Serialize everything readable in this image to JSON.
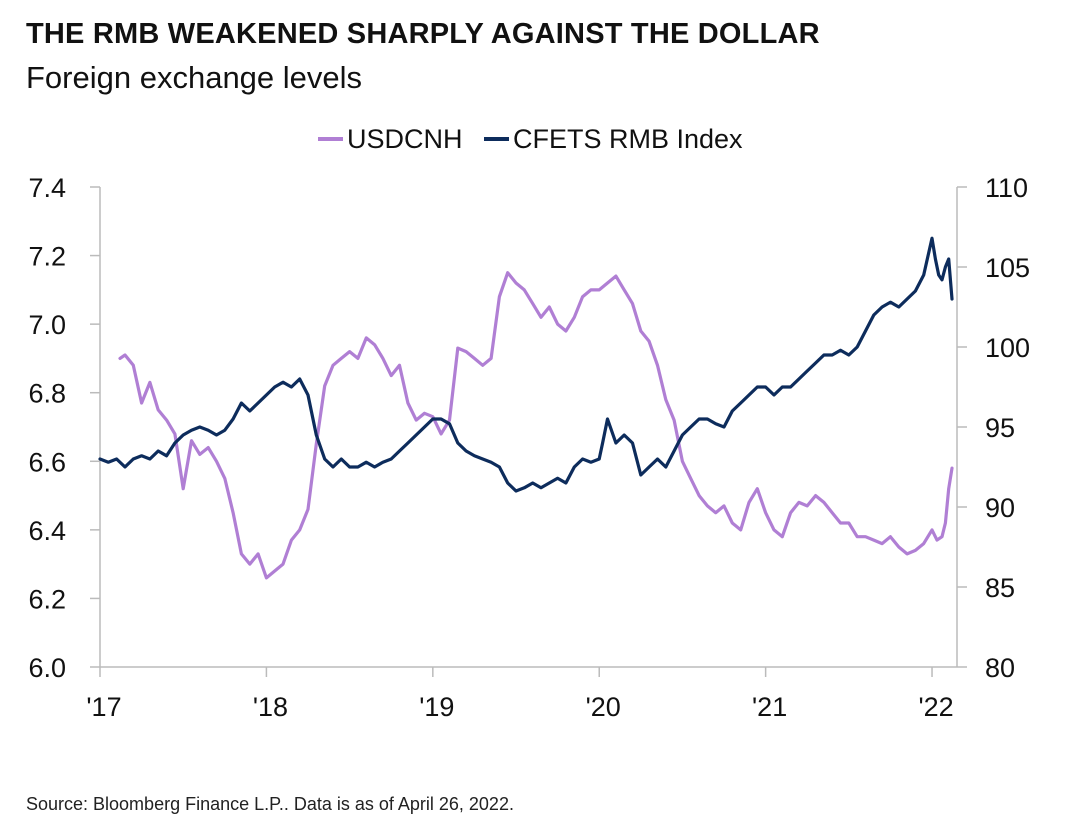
{
  "header": {
    "title": "THE RMB WEAKENED SHARPLY AGAINST THE DOLLAR",
    "subtitle": "Foreign exchange levels"
  },
  "footer": {
    "source": "Source: Bloomberg Finance L.P.. Data is as of April 26, 2022."
  },
  "chart_data": {
    "type": "line",
    "title": "THE RMB WEAKENED SHARPLY AGAINST THE DOLLAR",
    "subtitle": "Foreign exchange levels",
    "xlabel": "",
    "ylabel_left": "",
    "ylabel_right": "",
    "x_ticks": [
      "'17",
      "'18",
      "'19",
      "'20",
      "'21",
      "'22"
    ],
    "xlim": [
      2017.0,
      2022.15
    ],
    "y_left": {
      "lim": [
        6.0,
        7.4
      ],
      "ticks": [
        "6.0",
        "6.2",
        "6.4",
        "6.6",
        "6.8",
        "7.0",
        "7.2",
        "7.4"
      ]
    },
    "y_right": {
      "lim": [
        80,
        110
      ],
      "ticks": [
        "80",
        "85",
        "90",
        "95",
        "100",
        "105",
        "110"
      ]
    },
    "grid": false,
    "legend": {
      "position": "top-center",
      "entries": [
        "USDCNH",
        "CFETS RMB Index"
      ]
    },
    "series": [
      {
        "name": "USDCNH",
        "axis": "left",
        "color": "#b07fd4",
        "x": [
          2017.12,
          2017.15,
          2017.2,
          2017.25,
          2017.3,
          2017.35,
          2017.4,
          2017.45,
          2017.5,
          2017.55,
          2017.6,
          2017.65,
          2017.7,
          2017.75,
          2017.8,
          2017.85,
          2017.9,
          2017.95,
          2018.0,
          2018.05,
          2018.1,
          2018.15,
          2018.2,
          2018.25,
          2018.3,
          2018.35,
          2018.4,
          2018.45,
          2018.5,
          2018.55,
          2018.6,
          2018.65,
          2018.7,
          2018.75,
          2018.8,
          2018.85,
          2018.9,
          2018.95,
          2019.0,
          2019.05,
          2019.1,
          2019.15,
          2019.2,
          2019.25,
          2019.3,
          2019.35,
          2019.4,
          2019.45,
          2019.5,
          2019.55,
          2019.6,
          2019.65,
          2019.7,
          2019.75,
          2019.8,
          2019.85,
          2019.9,
          2019.95,
          2020.0,
          2020.05,
          2020.1,
          2020.15,
          2020.2,
          2020.25,
          2020.3,
          2020.35,
          2020.4,
          2020.45,
          2020.5,
          2020.55,
          2020.6,
          2020.65,
          2020.7,
          2020.75,
          2020.8,
          2020.85,
          2020.9,
          2020.95,
          2021.0,
          2021.05,
          2021.1,
          2021.15,
          2021.2,
          2021.25,
          2021.3,
          2021.35,
          2021.4,
          2021.45,
          2021.5,
          2021.55,
          2021.6,
          2021.65,
          2021.7,
          2021.75,
          2021.8,
          2021.85,
          2021.9,
          2021.95,
          2022.0,
          2022.03,
          2022.06,
          2022.08,
          2022.1,
          2022.12
        ],
        "values": [
          6.9,
          6.91,
          6.88,
          6.77,
          6.83,
          6.75,
          6.72,
          6.68,
          6.52,
          6.66,
          6.62,
          6.64,
          6.6,
          6.55,
          6.45,
          6.33,
          6.3,
          6.33,
          6.26,
          6.28,
          6.3,
          6.37,
          6.4,
          6.46,
          6.65,
          6.82,
          6.88,
          6.9,
          6.92,
          6.9,
          6.96,
          6.94,
          6.9,
          6.85,
          6.88,
          6.77,
          6.72,
          6.74,
          6.73,
          6.68,
          6.72,
          6.93,
          6.92,
          6.9,
          6.88,
          6.9,
          7.08,
          7.15,
          7.12,
          7.1,
          7.06,
          7.02,
          7.05,
          7.0,
          6.98,
          7.02,
          7.08,
          7.1,
          7.1,
          7.12,
          7.14,
          7.1,
          7.06,
          6.98,
          6.95,
          6.88,
          6.78,
          6.72,
          6.6,
          6.55,
          6.5,
          6.47,
          6.45,
          6.47,
          6.42,
          6.4,
          6.48,
          6.52,
          6.45,
          6.4,
          6.38,
          6.45,
          6.48,
          6.47,
          6.5,
          6.48,
          6.45,
          6.42,
          6.42,
          6.38,
          6.38,
          6.37,
          6.36,
          6.38,
          6.35,
          6.33,
          6.34,
          6.36,
          6.4,
          6.37,
          6.38,
          6.42,
          6.52,
          6.58
        ]
      },
      {
        "name": "CFETS RMB Index",
        "axis": "right",
        "color": "#0d2c5c",
        "x": [
          2017.0,
          2017.05,
          2017.1,
          2017.15,
          2017.2,
          2017.25,
          2017.3,
          2017.35,
          2017.4,
          2017.45,
          2017.5,
          2017.55,
          2017.6,
          2017.65,
          2017.7,
          2017.75,
          2017.8,
          2017.85,
          2017.9,
          2017.95,
          2018.0,
          2018.05,
          2018.1,
          2018.15,
          2018.2,
          2018.25,
          2018.3,
          2018.35,
          2018.4,
          2018.45,
          2018.5,
          2018.55,
          2018.6,
          2018.65,
          2018.7,
          2018.75,
          2018.8,
          2018.85,
          2018.9,
          2018.95,
          2019.0,
          2019.05,
          2019.1,
          2019.15,
          2019.2,
          2019.25,
          2019.3,
          2019.35,
          2019.4,
          2019.45,
          2019.5,
          2019.55,
          2019.6,
          2019.65,
          2019.7,
          2019.75,
          2019.8,
          2019.85,
          2019.9,
          2019.95,
          2020.0,
          2020.02,
          2020.05,
          2020.1,
          2020.15,
          2020.2,
          2020.25,
          2020.3,
          2020.35,
          2020.4,
          2020.45,
          2020.5,
          2020.55,
          2020.6,
          2020.65,
          2020.7,
          2020.75,
          2020.8,
          2020.85,
          2020.9,
          2020.95,
          2021.0,
          2021.05,
          2021.1,
          2021.15,
          2021.2,
          2021.25,
          2021.3,
          2021.35,
          2021.4,
          2021.45,
          2021.5,
          2021.55,
          2021.6,
          2021.65,
          2021.7,
          2021.75,
          2021.8,
          2021.85,
          2021.9,
          2021.95,
          2022.0,
          2022.02,
          2022.04,
          2022.06,
          2022.08,
          2022.1,
          2022.12
        ],
        "values": [
          93.0,
          92.8,
          93.0,
          92.5,
          93.0,
          93.2,
          93.0,
          93.5,
          93.2,
          94.0,
          94.5,
          94.8,
          95.0,
          94.8,
          94.5,
          94.8,
          95.5,
          96.5,
          96.0,
          96.5,
          97.0,
          97.5,
          97.8,
          97.5,
          98.0,
          97.0,
          94.5,
          93.0,
          92.5,
          93.0,
          92.5,
          92.5,
          92.8,
          92.5,
          92.8,
          93.0,
          93.5,
          94.0,
          94.5,
          95.0,
          95.5,
          95.5,
          95.2,
          94.0,
          93.5,
          93.2,
          93.0,
          92.8,
          92.5,
          91.5,
          91.0,
          91.2,
          91.5,
          91.2,
          91.5,
          91.8,
          91.5,
          92.5,
          93.0,
          92.8,
          93.0,
          94.0,
          95.5,
          94.0,
          94.5,
          94.0,
          92.0,
          92.5,
          93.0,
          92.5,
          93.5,
          94.5,
          95.0,
          95.5,
          95.5,
          95.2,
          95.0,
          96.0,
          96.5,
          97.0,
          97.5,
          97.5,
          97.0,
          97.5,
          97.5,
          98.0,
          98.5,
          99.0,
          99.5,
          99.5,
          99.8,
          99.5,
          100.0,
          101.0,
          102.0,
          102.5,
          102.8,
          102.5,
          103.0,
          103.5,
          104.5,
          106.8,
          105.5,
          104.5,
          104.2,
          105.0,
          105.5,
          103.0
        ]
      }
    ]
  }
}
